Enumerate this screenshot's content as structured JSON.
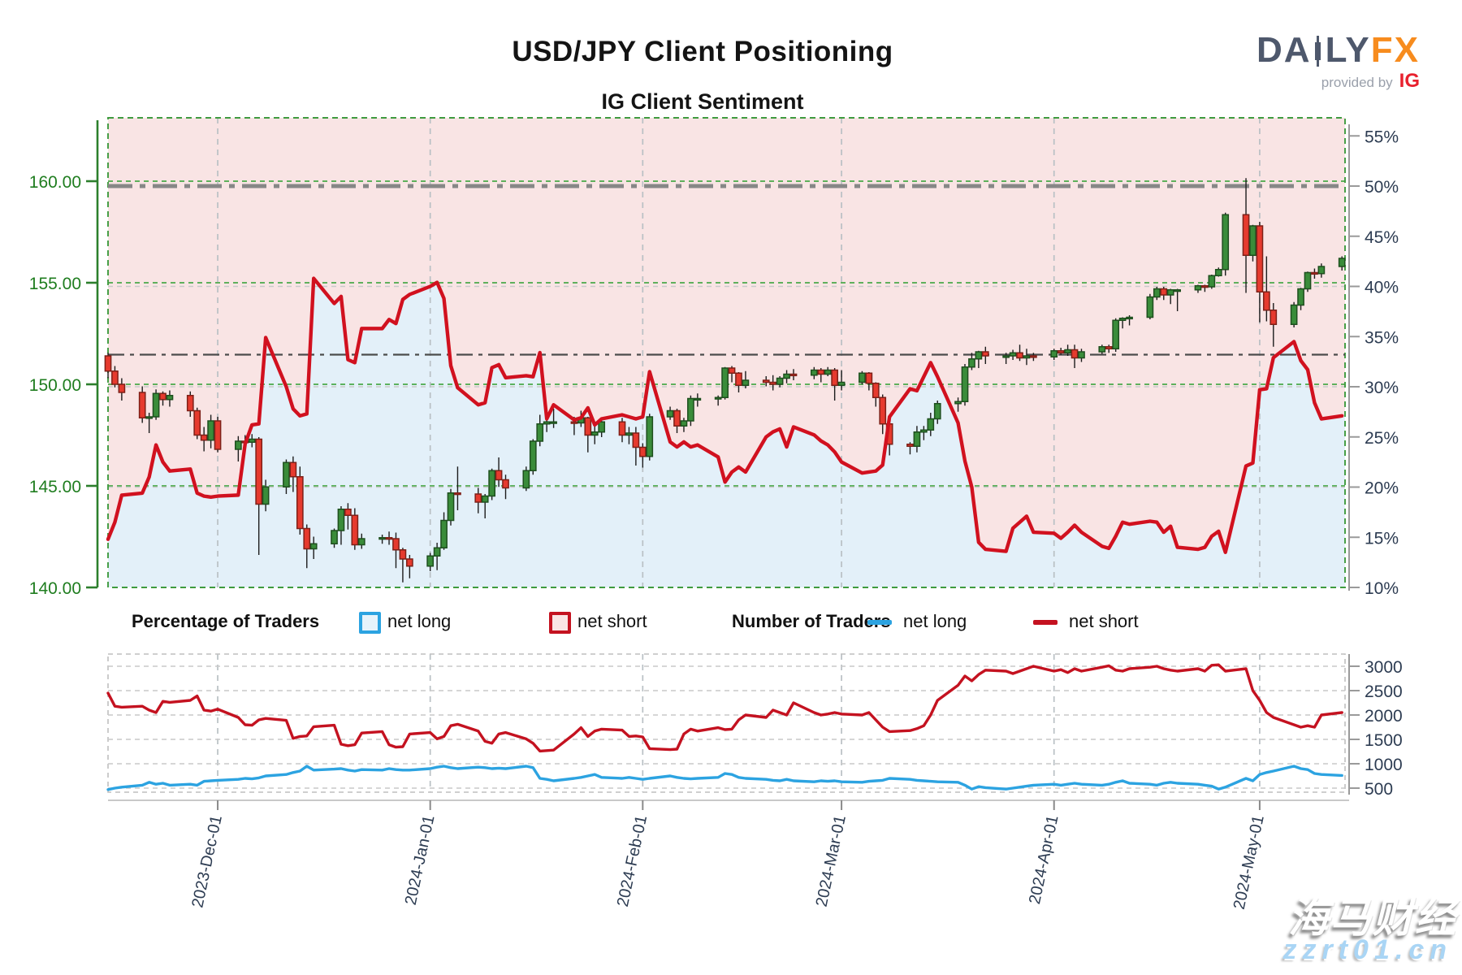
{
  "header": {
    "title": "USD/JPY Client Positioning",
    "subtitle": "IG Client Sentiment"
  },
  "logo": {
    "daily_left": "DA",
    "daily_right": "LY",
    "fx": "FX",
    "provided_by": "provided by",
    "ig": "IG"
  },
  "legend": {
    "pct_title": "Percentage of Traders",
    "pct_long": "net long",
    "pct_short": "net short",
    "num_title": "Number of Traders",
    "num_long": "net long",
    "num_short": "net short"
  },
  "watermark": {
    "line1": "海马财经",
    "line2": "zzrt01.cn"
  },
  "colors": {
    "net_long_blue": "#2ca3e1",
    "net_short_red": "#c41220",
    "sentiment_line": "#d1111f",
    "area_above": "#f9e4e4",
    "area_below": "#e3f0f9",
    "candle_up": "#3a8c3a",
    "candle_up_edge": "#1e4f1e",
    "candle_down": "#e63a2e",
    "candle_down_edge": "#7e2018",
    "axis_green": "#2c7f2c",
    "grid_green": "#49a949",
    "grid_gray": "#c9c9c9",
    "month_grid": "#b9c0c4",
    "guide50": "#878787",
    "guide33": "#4c4c4c",
    "label_navy": "#2d3c52"
  },
  "chart_data": {
    "type": "candlestick+line",
    "title": "IG Client Sentiment",
    "price_axis": {
      "ticks": [
        "160.00",
        "155.00",
        "150.00",
        "145.00",
        "140.00"
      ],
      "values": [
        160,
        155,
        150,
        145,
        140
      ],
      "range": [
        140,
        163.1
      ]
    },
    "pct_axis": {
      "ticks": [
        "55%",
        "50%",
        "45%",
        "40%",
        "35%",
        "30%",
        "25%",
        "20%",
        "15%",
        "10%"
      ],
      "values": [
        55,
        50,
        45,
        40,
        35,
        30,
        25,
        20,
        15,
        10
      ],
      "range": [
        10,
        56.8
      ]
    },
    "count_axis": {
      "ticks": [
        "3000",
        "2500",
        "2000",
        "1500",
        "1000",
        "500"
      ],
      "values": [
        3000,
        2500,
        2000,
        1500,
        1000,
        500
      ]
    },
    "guides": {
      "pct_50": 50,
      "pct_current": 33.2
    },
    "grid_green_prices": [
      145,
      150,
      155,
      160
    ],
    "grid_gray_pcts": [
      20,
      30,
      40
    ],
    "count_gridlines": [
      500,
      1000,
      1500,
      2000,
      2500,
      3000
    ],
    "months": [
      {
        "label": "2023-Dec-01",
        "d": 16
      },
      {
        "label": "2024-Jan-01",
        "d": 47
      },
      {
        "label": "2024-Feb-01",
        "d": 78
      },
      {
        "label": "2024-Mar-01",
        "d": 107
      },
      {
        "label": "2024-Apr-01",
        "d": 138
      },
      {
        "label": "2024-May-01",
        "d": 168
      }
    ],
    "candles_ohlc_by_day": [
      [
        0,
        151.4,
        151.55,
        150.3,
        150.65
      ],
      [
        1,
        150.65,
        150.9,
        149.85,
        150.0
      ],
      [
        2,
        150.0,
        150.3,
        149.2,
        149.6
      ],
      [
        5,
        149.6,
        149.9,
        148.1,
        148.35
      ],
      [
        6,
        148.35,
        148.6,
        147.6,
        148.4
      ],
      [
        7,
        148.4,
        149.75,
        148.25,
        149.55
      ],
      [
        8,
        149.55,
        149.65,
        148.95,
        149.25
      ],
      [
        9,
        149.25,
        149.7,
        148.9,
        149.45
      ],
      [
        12,
        149.45,
        149.65,
        148.4,
        148.7
      ],
      [
        13,
        148.7,
        148.85,
        147.3,
        147.5
      ],
      [
        14,
        147.5,
        147.9,
        146.7,
        147.25
      ],
      [
        15,
        147.25,
        148.5,
        146.85,
        148.2
      ],
      [
        16,
        148.2,
        148.4,
        146.65,
        146.8
      ],
      [
        19,
        146.8,
        147.45,
        146.2,
        147.2
      ],
      [
        20,
        147.2,
        147.5,
        146.6,
        147.15
      ],
      [
        21,
        147.15,
        147.55,
        146.9,
        147.3
      ],
      [
        22,
        147.3,
        147.4,
        141.6,
        144.1
      ],
      [
        23,
        144.1,
        145.3,
        143.75,
        144.95
      ],
      [
        26,
        144.95,
        146.3,
        144.6,
        146.15
      ],
      [
        27,
        146.15,
        146.45,
        144.7,
        145.45
      ],
      [
        28,
        145.45,
        145.95,
        142.6,
        142.9
      ],
      [
        29,
        142.9,
        143.1,
        140.95,
        141.9
      ],
      [
        30,
        141.9,
        142.5,
        141.4,
        142.15
      ],
      [
        33,
        142.15,
        142.9,
        141.95,
        142.8
      ],
      [
        34,
        142.8,
        144.0,
        142.1,
        143.85
      ],
      [
        35,
        143.85,
        144.15,
        142.85,
        143.55
      ],
      [
        36,
        143.55,
        143.9,
        141.85,
        142.1
      ],
      [
        37,
        142.1,
        142.65,
        141.9,
        142.4
      ],
      [
        40,
        142.4,
        142.6,
        142.15,
        142.45
      ],
      [
        41,
        142.45,
        142.75,
        142.1,
        142.4
      ],
      [
        42,
        142.4,
        142.7,
        140.95,
        141.85
      ],
      [
        43,
        141.85,
        141.95,
        140.25,
        141.4
      ],
      [
        44,
        141.4,
        141.6,
        140.45,
        141.05
      ],
      [
        47,
        141.05,
        141.7,
        140.8,
        141.55
      ],
      [
        48,
        141.55,
        142.2,
        140.85,
        141.95
      ],
      [
        49,
        141.95,
        143.7,
        141.85,
        143.3
      ],
      [
        50,
        143.3,
        144.85,
        143.05,
        144.65
      ],
      [
        51,
        144.65,
        145.95,
        143.8,
        144.6
      ],
      [
        54,
        144.6,
        144.9,
        143.65,
        144.2
      ],
      [
        55,
        144.2,
        144.6,
        143.4,
        144.5
      ],
      [
        56,
        144.5,
        145.85,
        144.3,
        145.75
      ],
      [
        57,
        145.75,
        146.4,
        144.95,
        145.3
      ],
      [
        58,
        145.3,
        145.55,
        144.35,
        144.9
      ],
      [
        61,
        144.9,
        145.95,
        144.75,
        145.75
      ],
      [
        62,
        145.75,
        147.3,
        145.55,
        147.2
      ],
      [
        63,
        147.2,
        148.5,
        146.95,
        148.05
      ],
      [
        64,
        148.05,
        148.3,
        147.65,
        148.15
      ],
      [
        65,
        148.15,
        148.8,
        147.85,
        148.15
      ],
      [
        68,
        148.15,
        148.4,
        147.5,
        148.1
      ],
      [
        69,
        148.1,
        148.7,
        147.9,
        148.35
      ],
      [
        70,
        148.35,
        148.4,
        146.65,
        147.5
      ],
      [
        71,
        147.5,
        147.95,
        147.05,
        147.65
      ],
      [
        72,
        147.65,
        148.2,
        147.4,
        148.15
      ],
      [
        75,
        148.15,
        148.35,
        147.15,
        147.5
      ],
      [
        76,
        147.5,
        147.9,
        147.05,
        147.6
      ],
      [
        77,
        147.6,
        147.9,
        146.0,
        146.9
      ],
      [
        78,
        146.9,
        147.1,
        145.9,
        146.45
      ],
      [
        79,
        146.45,
        148.55,
        146.25,
        148.4
      ],
      [
        82,
        148.4,
        148.9,
        148.25,
        148.7
      ],
      [
        83,
        148.7,
        148.8,
        147.6,
        147.95
      ],
      [
        84,
        147.95,
        148.35,
        147.65,
        148.2
      ],
      [
        85,
        148.2,
        149.45,
        147.95,
        149.3
      ],
      [
        86,
        149.3,
        149.55,
        148.9,
        149.3
      ],
      [
        89,
        149.3,
        149.45,
        148.95,
        149.35
      ],
      [
        90,
        149.35,
        150.85,
        149.25,
        150.8
      ],
      [
        91,
        150.8,
        150.9,
        150.1,
        150.55
      ],
      [
        92,
        150.55,
        150.6,
        149.6,
        149.95
      ],
      [
        93,
        149.95,
        150.65,
        149.8,
        150.2
      ],
      [
        96,
        150.2,
        150.4,
        149.9,
        150.1
      ],
      [
        97,
        150.1,
        150.45,
        149.7,
        150.0
      ],
      [
        98,
        150.0,
        150.4,
        149.85,
        150.3
      ],
      [
        99,
        150.3,
        150.7,
        150.05,
        150.5
      ],
      [
        100,
        150.5,
        150.75,
        150.2,
        150.45
      ],
      [
        103,
        150.45,
        150.85,
        150.25,
        150.7
      ],
      [
        104,
        150.7,
        150.8,
        150.1,
        150.5
      ],
      [
        105,
        150.5,
        150.85,
        150.4,
        150.7
      ],
      [
        106,
        150.7,
        150.8,
        149.2,
        149.95
      ],
      [
        107,
        149.95,
        150.7,
        149.7,
        150.1
      ],
      [
        110,
        150.1,
        150.65,
        150.0,
        150.55
      ],
      [
        111,
        150.55,
        150.6,
        149.7,
        150.05
      ],
      [
        112,
        150.05,
        150.1,
        148.9,
        149.35
      ],
      [
        113,
        149.35,
        149.5,
        147.55,
        148.05
      ],
      [
        114,
        148.05,
        148.25,
        146.5,
        147.05
      ],
      [
        117,
        147.05,
        147.15,
        146.55,
        146.95
      ],
      [
        118,
        146.95,
        147.95,
        146.65,
        147.65
      ],
      [
        119,
        147.65,
        147.95,
        147.25,
        147.75
      ],
      [
        120,
        147.75,
        148.6,
        147.45,
        148.3
      ],
      [
        121,
        148.3,
        149.2,
        148.05,
        149.05
      ],
      [
        124,
        149.05,
        149.35,
        148.65,
        149.15
      ],
      [
        125,
        149.15,
        151.0,
        148.95,
        150.85
      ],
      [
        126,
        150.85,
        151.55,
        150.7,
        151.25
      ],
      [
        127,
        151.25,
        151.65,
        150.8,
        151.6
      ],
      [
        128,
        151.6,
        151.85,
        151.0,
        151.4
      ],
      [
        131,
        151.4,
        151.55,
        151.0,
        151.4
      ],
      [
        132,
        151.4,
        151.7,
        151.2,
        151.55
      ],
      [
        133,
        151.55,
        151.95,
        151.15,
        151.3
      ],
      [
        134,
        151.3,
        151.75,
        150.95,
        151.4
      ],
      [
        135,
        151.4,
        151.55,
        151.15,
        151.35
      ],
      [
        138,
        151.35,
        151.75,
        151.2,
        151.65
      ],
      [
        139,
        151.65,
        151.8,
        151.45,
        151.55
      ],
      [
        140,
        151.55,
        151.95,
        151.4,
        151.7
      ],
      [
        141,
        151.7,
        151.95,
        150.8,
        151.3
      ],
      [
        142,
        151.3,
        151.75,
        151.1,
        151.6
      ],
      [
        145,
        151.6,
        151.95,
        151.5,
        151.85
      ],
      [
        146,
        151.85,
        151.95,
        151.55,
        151.75
      ],
      [
        147,
        151.75,
        153.25,
        151.6,
        153.15
      ],
      [
        148,
        153.15,
        153.3,
        152.75,
        153.25
      ],
      [
        149,
        153.25,
        153.4,
        152.9,
        153.3
      ],
      [
        152,
        153.3,
        154.45,
        153.2,
        154.3
      ],
      [
        153,
        154.3,
        154.8,
        154.15,
        154.7
      ],
      [
        154,
        154.7,
        154.8,
        154.15,
        154.4
      ],
      [
        155,
        154.4,
        154.7,
        153.95,
        154.65
      ],
      [
        156,
        154.65,
        154.7,
        153.6,
        154.65
      ],
      [
        159,
        154.65,
        154.9,
        154.5,
        154.85
      ],
      [
        160,
        154.85,
        154.9,
        154.55,
        154.8
      ],
      [
        161,
        154.8,
        155.4,
        154.7,
        155.35
      ],
      [
        162,
        155.35,
        155.75,
        155.3,
        155.65
      ],
      [
        163,
        155.65,
        158.45,
        155.35,
        158.35
      ],
      [
        166,
        158.35,
        160.15,
        154.5,
        156.35
      ],
      [
        167,
        156.35,
        157.85,
        156.05,
        157.8
      ],
      [
        168,
        157.8,
        158.0,
        153.05,
        154.55
      ],
      [
        169,
        154.55,
        156.3,
        153.1,
        153.65
      ],
      [
        170,
        153.65,
        154.0,
        151.85,
        152.95
      ],
      [
        173,
        152.95,
        154.05,
        152.8,
        153.9
      ],
      [
        174,
        153.9,
        154.75,
        153.65,
        154.7
      ],
      [
        175,
        154.7,
        155.55,
        154.55,
        155.5
      ],
      [
        176,
        155.5,
        155.7,
        155.2,
        155.45
      ],
      [
        177,
        155.45,
        155.95,
        155.25,
        155.8
      ],
      [
        180,
        155.8,
        156.3,
        155.6,
        156.2
      ]
    ],
    "net_short_pct": [
      14.8,
      16.5,
      19.2,
      19.4,
      21.0,
      24.2,
      22.5,
      21.6,
      21.8,
      19.4,
      19.1,
      19.0,
      19.1,
      19.2,
      24.3,
      26.2,
      26.3,
      34.9,
      30.0,
      27.8,
      27.1,
      27.3,
      40.8,
      38.3,
      39.0,
      32.7,
      32.4,
      35.8,
      35.8,
      36.7,
      36.3,
      38.7,
      39.2,
      40.0,
      40.4,
      38.8,
      32.1,
      29.9,
      28.2,
      28.4,
      31.9,
      32.2,
      30.9,
      31.1,
      31.0,
      33.4,
      26.8,
      28.2,
      26.7,
      26.9,
      27.9,
      26.2,
      26.8,
      27.2,
      27.0,
      26.8,
      27.0,
      31.5,
      24.5,
      24.0,
      24.5,
      24.0,
      24.2,
      23.0,
      20.5,
      21.5,
      22.0,
      21.5,
      25.0,
      25.5,
      25.8,
      24.0,
      26.0,
      25.2,
      24.6,
      24.2,
      23.5,
      22.5,
      21.4,
      21.5,
      21.6,
      22.2,
      27.0,
      29.8,
      29.6,
      31.0,
      32.4,
      31.0,
      26.4,
      22.6,
      20.0,
      14.5,
      13.8,
      13.6,
      15.9,
      16.5,
      17.1,
      15.5,
      15.4,
      14.9,
      15.5,
      16.2,
      15.5,
      14.1,
      13.9,
      15.1,
      16.5,
      16.3,
      16.6,
      16.5,
      15.5,
      16.1,
      14.0,
      13.8,
      14.0,
      15.1,
      15.6,
      13.5,
      22.1,
      22.4,
      29.7,
      29.8,
      32.9,
      34.5,
      32.6,
      31.7,
      28.4,
      26.8,
      27.1
    ],
    "num_short": [
      2450,
      2180,
      2160,
      2180,
      2100,
      2050,
      2280,
      2260,
      2300,
      2390,
      2100,
      2080,
      2120,
      1950,
      1800,
      1790,
      1900,
      1930,
      1890,
      1520,
      1560,
      1570,
      1760,
      1790,
      1400,
      1370,
      1390,
      1630,
      1660,
      1390,
      1340,
      1350,
      1610,
      1640,
      1510,
      1560,
      1780,
      1810,
      1670,
      1460,
      1420,
      1610,
      1640,
      1510,
      1420,
      1260,
      1270,
      1280,
      1610,
      1740,
      1560,
      1670,
      1710,
      1690,
      1560,
      1570,
      1550,
      1310,
      1290,
      1300,
      1610,
      1710,
      1670,
      1740,
      1700,
      1710,
      1900,
      2000,
      1950,
      2100,
      2050,
      2000,
      2250,
      2050,
      2000,
      2020,
      2050,
      2020,
      2000,
      2050,
      1900,
      1750,
      1660,
      1680,
      1720,
      1780,
      2000,
      2300,
      2610,
      2800,
      2700,
      2830,
      2920,
      2900,
      2850,
      2900,
      2950,
      3000,
      2900,
      2930,
      2870,
      2950,
      2900,
      2980,
      3010,
      2920,
      2900,
      2950,
      2980,
      3000,
      2950,
      2920,
      2900,
      2950,
      2900,
      3020,
      3030,
      2900,
      2950,
      2500,
      2300,
      2050,
      1950,
      1800,
      1750,
      1780,
      1750,
      2000,
      2050
    ],
    "num_long": [
      470,
      500,
      520,
      560,
      620,
      580,
      600,
      560,
      580,
      560,
      640,
      650,
      660,
      680,
      700,
      690,
      710,
      750,
      780,
      820,
      850,
      950,
      870,
      890,
      900,
      870,
      850,
      880,
      870,
      900,
      880,
      870,
      870,
      900,
      930,
      950,
      920,
      900,
      930,
      920,
      900,
      910,
      900,
      950,
      920,
      700,
      680,
      650,
      700,
      720,
      750,
      780,
      720,
      700,
      720,
      700,
      680,
      700,
      750,
      720,
      700,
      690,
      700,
      720,
      800,
      780,
      720,
      700,
      680,
      660,
      650,
      680,
      650,
      630,
      650,
      640,
      650,
      630,
      620,
      640,
      650,
      660,
      700,
      680,
      660,
      650,
      640,
      630,
      620,
      560,
      480,
      530,
      510,
      480,
      500,
      520,
      540,
      560,
      580,
      560,
      580,
      600,
      580,
      560,
      580,
      620,
      650,
      600,
      580,
      560,
      600,
      620,
      600,
      580,
      560,
      540,
      480,
      520,
      700,
      650,
      780,
      820,
      850,
      950,
      900,
      880,
      800,
      780,
      760
    ]
  }
}
